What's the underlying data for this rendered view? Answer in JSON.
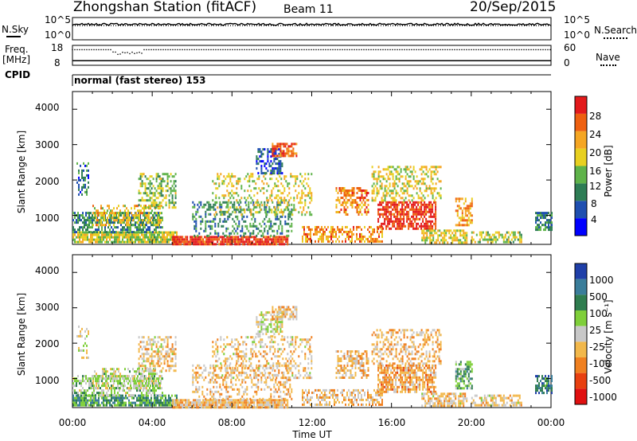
{
  "header": {
    "station_title": "Zhongshan Station (fitACF)",
    "beam": "Beam 11",
    "date": "20/Sep/2015"
  },
  "top_panels": {
    "nsky_label": "N.Sky",
    "nsearch_label": "N.Search",
    "nsky_ticks": [
      "10^5",
      "10^0"
    ],
    "nsearch_ticks": [
      "10^5",
      "10^0"
    ],
    "freq_label": "Freq.",
    "freq_unit": "[MHz]",
    "freq_ticks": [
      "18",
      "8"
    ],
    "nave_label": "Nave",
    "nave_ticks": [
      "60",
      "0"
    ],
    "cpid_label": "CPID",
    "cpid_text": "normal (fast stereo) 153"
  },
  "axes": {
    "x_label": "Time UT",
    "x_ticks": [
      "00:00",
      "04:00",
      "08:00",
      "12:00",
      "16:00",
      "20:00",
      "00:00"
    ],
    "y_label": "Slant Range [km]",
    "y_ticks": [
      "4000",
      "3000",
      "2000",
      "1000"
    ]
  },
  "colorbars": {
    "power": {
      "label": "Power [dB]",
      "ticks": [
        "28",
        "24",
        "20",
        "16",
        "12",
        "8",
        "4"
      ],
      "colors": [
        "#0000ff",
        "#1f4fb0",
        "#2e7d55",
        "#5fb34a",
        "#e8d020",
        "#f5a623",
        "#ee6010",
        "#e31a1c"
      ]
    },
    "velocity": {
      "label": "Velocity [m s⁻¹]",
      "ticks": [
        "1000",
        "500",
        "100",
        "25",
        "-25",
        "-100",
        "-500",
        "-1000"
      ],
      "colors": [
        "#1f3fa8",
        "#3a7d9a",
        "#2f7d4f",
        "#7fcf3a",
        "#c8c8c8",
        "#f2b84b",
        "#f08020",
        "#e84010",
        "#e01010"
      ]
    }
  },
  "chart_data": [
    {
      "type": "line",
      "name": "N.Sky / N.Search",
      "x_range_hours": [
        0,
        24
      ],
      "y_scale": "log",
      "ylim": [
        1,
        100000
      ],
      "series": [
        {
          "name": "N.Sky",
          "style": "solid",
          "level": 3000
        },
        {
          "name": "N.Search",
          "style": "dotted",
          "level": 1500
        }
      ]
    },
    {
      "type": "line",
      "name": "Freq / Nave",
      "x_range_hours": [
        0,
        24
      ],
      "freq_ylim": [
        8,
        18
      ],
      "nave_ylim": [
        0,
        60
      ],
      "series": [
        {
          "name": "Freq.",
          "style": "solid",
          "value_mhz": 10.3
        },
        {
          "name": "Nave",
          "style": "dotted",
          "value": 47,
          "dip_hours": [
            2.0,
            3.5
          ],
          "dip_value": 36
        }
      ]
    },
    {
      "type": "heatmap",
      "name": "Power",
      "x_range_hours": [
        0,
        24
      ],
      "ylim": [
        180,
        4500
      ],
      "colorbar_range": [
        0,
        30
      ],
      "regions": [
        {
          "t0": 0.0,
          "t1": 5.2,
          "r0": 250,
          "r1": 550,
          "value": 16,
          "density": 0.85
        },
        {
          "t0": 0.0,
          "t1": 4.5,
          "r0": 550,
          "r1": 1100,
          "value": 10,
          "density": 0.6
        },
        {
          "t0": 1.0,
          "t1": 4.5,
          "r0": 700,
          "r1": 1300,
          "value": 18,
          "density": 0.45
        },
        {
          "t0": 0.2,
          "t1": 0.8,
          "r0": 1600,
          "r1": 2500,
          "value": 8,
          "density": 0.35
        },
        {
          "t0": 3.3,
          "t1": 5.2,
          "r0": 1200,
          "r1": 2200,
          "value": 14,
          "density": 0.5
        },
        {
          "t0": 5.0,
          "t1": 10.8,
          "r0": 190,
          "r1": 420,
          "value": 27,
          "density": 0.92
        },
        {
          "t0": 6.0,
          "t1": 11.0,
          "r0": 400,
          "r1": 1400,
          "value": 10,
          "density": 0.35
        },
        {
          "t0": 7.0,
          "t1": 12.0,
          "r0": 1000,
          "r1": 2200,
          "value": 17,
          "density": 0.3
        },
        {
          "t0": 9.2,
          "t1": 10.5,
          "r0": 2200,
          "r1": 2900,
          "value": 6,
          "density": 0.55
        },
        {
          "t0": 10.0,
          "t1": 11.2,
          "r0": 2650,
          "r1": 3050,
          "value": 25,
          "density": 0.7
        },
        {
          "t0": 11.5,
          "t1": 15.5,
          "r0": 250,
          "r1": 700,
          "value": 22,
          "density": 0.55
        },
        {
          "t0": 13.2,
          "t1": 14.8,
          "r0": 1000,
          "r1": 1800,
          "value": 22,
          "density": 0.55
        },
        {
          "t0": 15.3,
          "t1": 18.2,
          "r0": 600,
          "r1": 1400,
          "value": 27,
          "density": 0.72
        },
        {
          "t0": 15.0,
          "t1": 18.5,
          "r0": 1400,
          "r1": 2400,
          "value": 17,
          "density": 0.4
        },
        {
          "t0": 17.5,
          "t1": 19.8,
          "r0": 250,
          "r1": 600,
          "value": 17,
          "density": 0.7
        },
        {
          "t0": 19.2,
          "t1": 20.0,
          "r0": 700,
          "r1": 1500,
          "value": 21,
          "density": 0.6
        },
        {
          "t0": 20.0,
          "t1": 22.5,
          "r0": 250,
          "r1": 550,
          "value": 15,
          "density": 0.55
        },
        {
          "t0": 23.2,
          "t1": 24.0,
          "r0": 600,
          "r1": 1100,
          "value": 9,
          "density": 0.65
        }
      ]
    },
    {
      "type": "heatmap",
      "name": "Velocity",
      "x_range_hours": [
        0,
        24
      ],
      "ylim": [
        180,
        4500
      ],
      "colorbar_range": [
        -1000,
        1000
      ],
      "regions": [
        {
          "t0": 0.0,
          "t1": 5.2,
          "r0": 250,
          "r1": 550,
          "value": 400,
          "density": 0.8
        },
        {
          "t0": 0.0,
          "t1": 4.5,
          "r0": 550,
          "r1": 1100,
          "value": 150,
          "density": 0.55
        },
        {
          "t0": 1.0,
          "t1": 4.5,
          "r0": 700,
          "r1": 1300,
          "value": 60,
          "density": 0.4
        },
        {
          "t0": 0.2,
          "t1": 0.8,
          "r0": 1600,
          "r1": 2500,
          "value": 0,
          "density": 0.3
        },
        {
          "t0": 3.3,
          "t1": 5.2,
          "r0": 1200,
          "r1": 2200,
          "value": -150,
          "density": 0.5
        },
        {
          "t0": 5.0,
          "t1": 10.8,
          "r0": 190,
          "r1": 420,
          "value": -200,
          "density": 0.92
        },
        {
          "t0": 6.0,
          "t1": 11.0,
          "r0": 400,
          "r1": 1400,
          "value": -200,
          "density": 0.35
        },
        {
          "t0": 7.0,
          "t1": 12.0,
          "r0": 1000,
          "r1": 2200,
          "value": -150,
          "density": 0.3
        },
        {
          "t0": 9.2,
          "t1": 10.5,
          "r0": 2200,
          "r1": 2900,
          "value": 0,
          "density": 0.55
        },
        {
          "t0": 10.0,
          "t1": 11.2,
          "r0": 2650,
          "r1": 3050,
          "value": -200,
          "density": 0.7
        },
        {
          "t0": 11.5,
          "t1": 15.5,
          "r0": 250,
          "r1": 700,
          "value": -200,
          "density": 0.55
        },
        {
          "t0": 13.2,
          "t1": 14.8,
          "r0": 1000,
          "r1": 1800,
          "value": -200,
          "density": 0.55
        },
        {
          "t0": 15.3,
          "t1": 18.2,
          "r0": 600,
          "r1": 1400,
          "value": -300,
          "density": 0.72
        },
        {
          "t0": 15.0,
          "t1": 18.5,
          "r0": 1400,
          "r1": 2400,
          "value": -250,
          "density": 0.4
        },
        {
          "t0": 17.5,
          "t1": 19.8,
          "r0": 250,
          "r1": 600,
          "value": -150,
          "density": 0.7
        },
        {
          "t0": 19.2,
          "t1": 20.0,
          "r0": 700,
          "r1": 1500,
          "value": 300,
          "density": 0.6
        },
        {
          "t0": 20.0,
          "t1": 22.5,
          "r0": 250,
          "r1": 550,
          "value": -150,
          "density": 0.55
        },
        {
          "t0": 23.2,
          "t1": 24.0,
          "r0": 600,
          "r1": 1100,
          "value": 600,
          "density": 0.65
        }
      ]
    }
  ]
}
